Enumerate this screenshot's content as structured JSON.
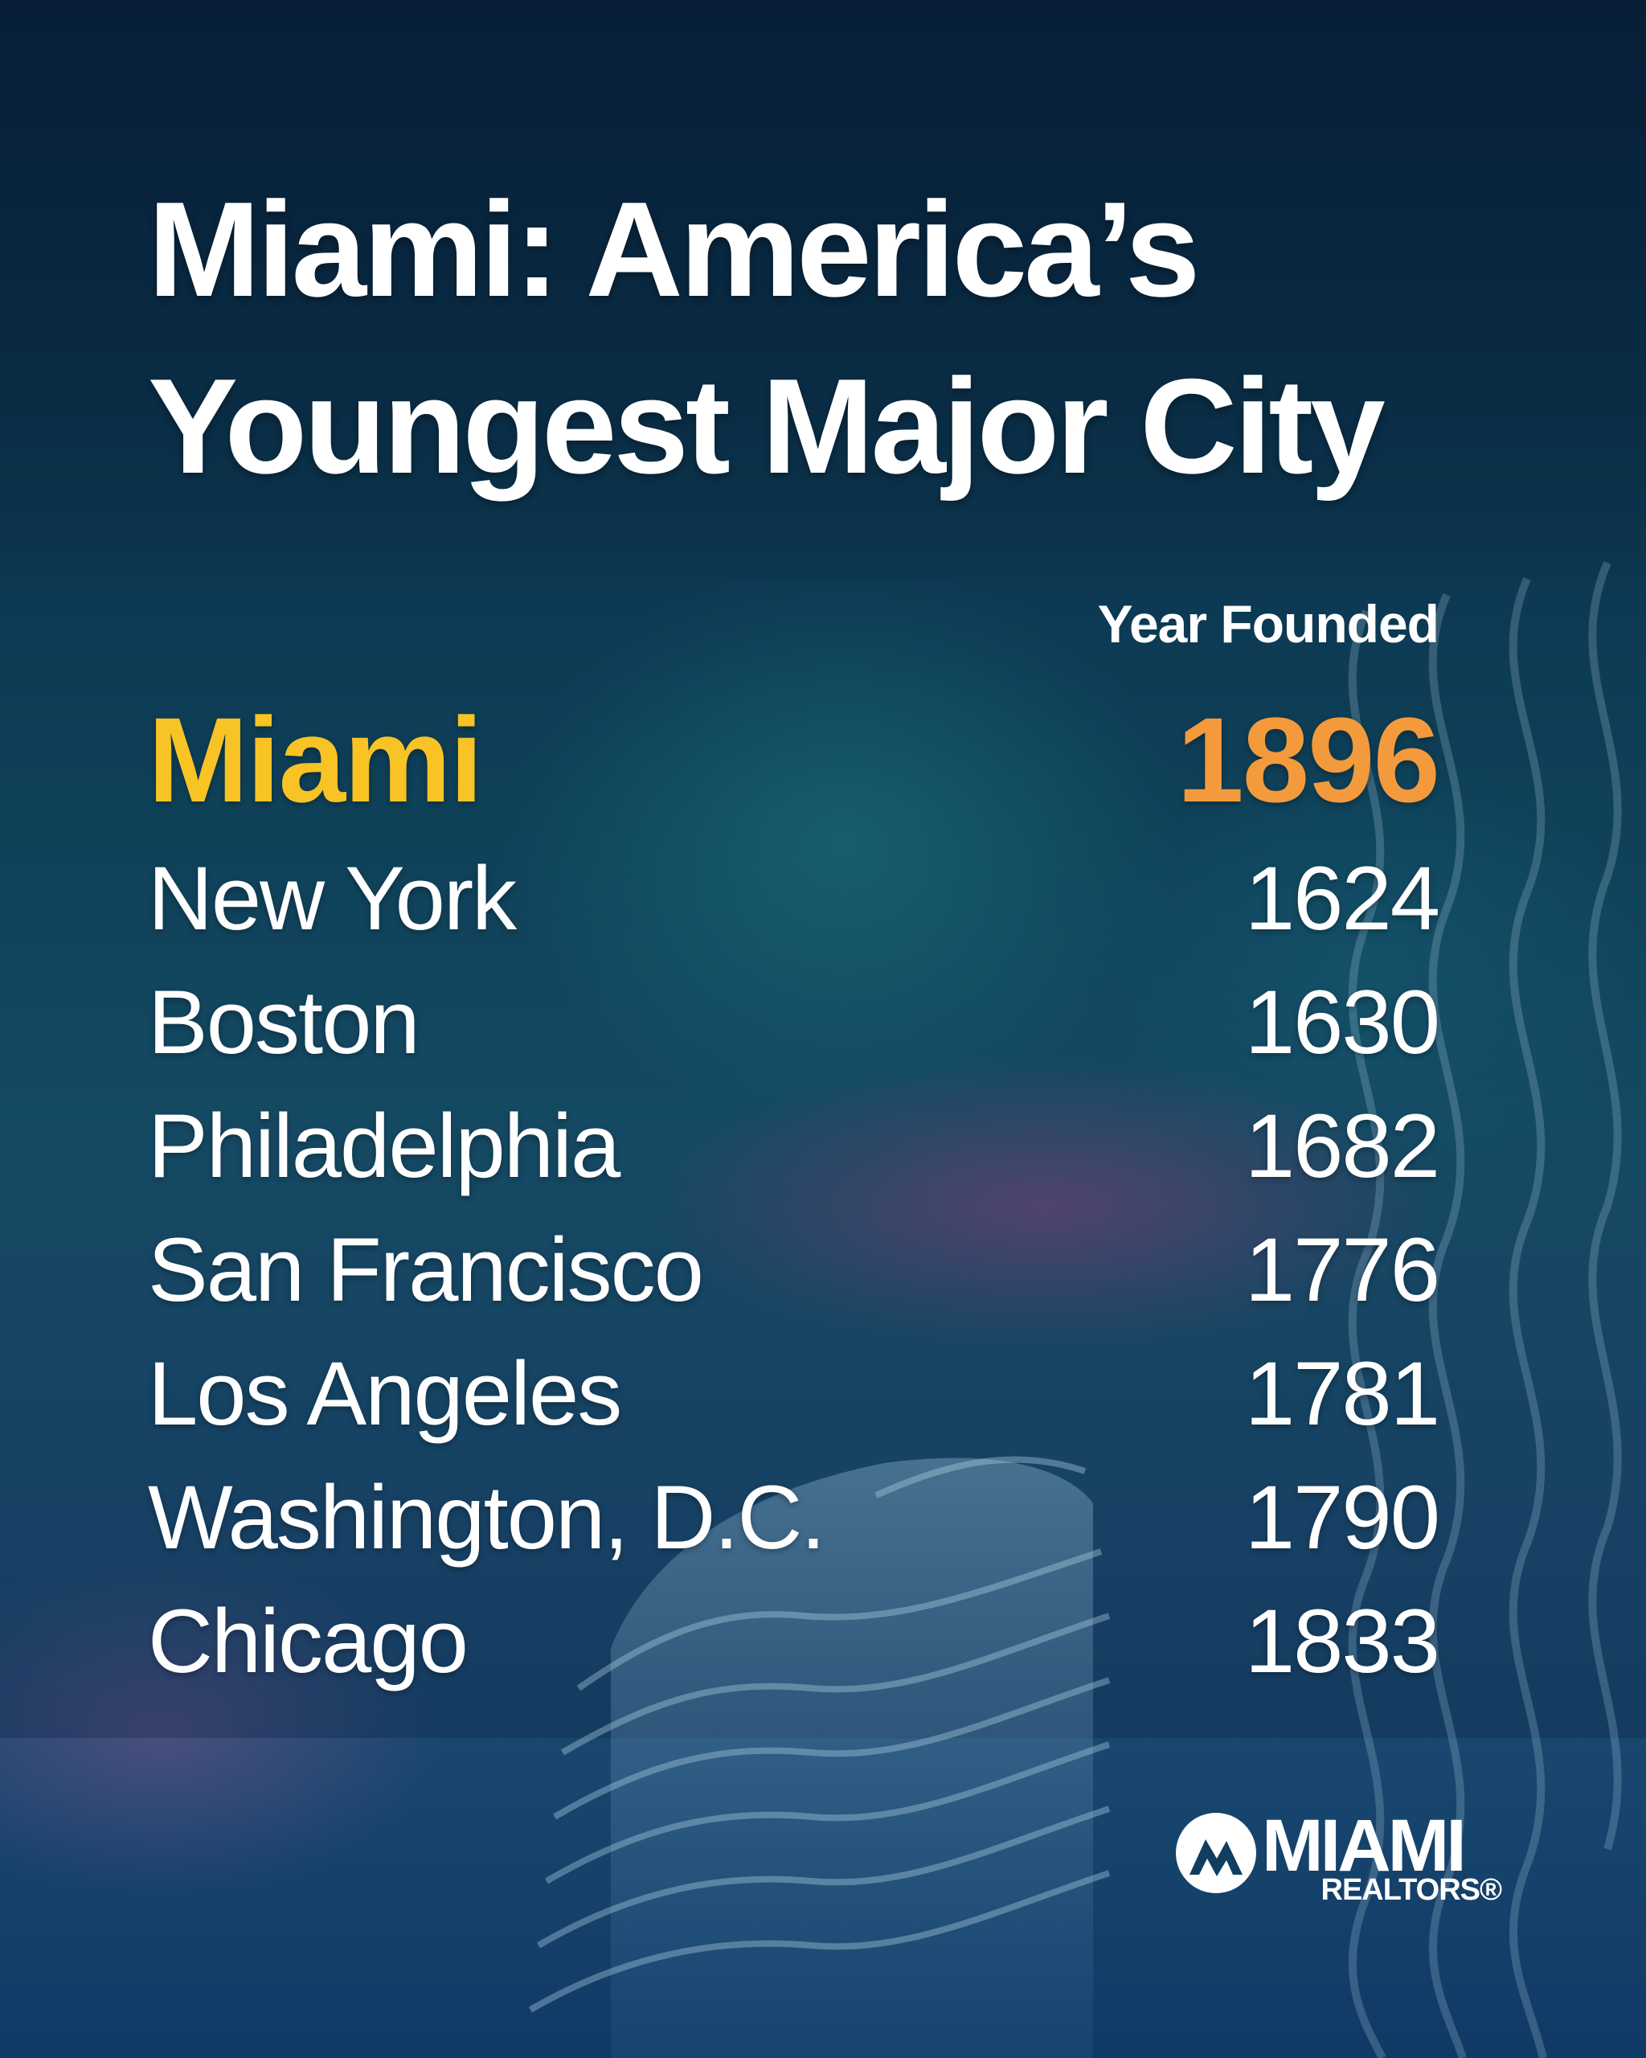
{
  "title": {
    "line1": "Miami: America’s",
    "line2": "Youngest Major City"
  },
  "column_header": "Year Founded",
  "cities": [
    {
      "name": "Miami",
      "year": "1896"
    },
    {
      "name": "New York",
      "year": "1624"
    },
    {
      "name": "Boston",
      "year": "1630"
    },
    {
      "name": "Philadelphia",
      "year": "1682"
    },
    {
      "name": "San Francisco",
      "year": "1776"
    },
    {
      "name": "Los Angeles",
      "year": "1781"
    },
    {
      "name": "Washington, D.C.",
      "year": "1790"
    },
    {
      "name": "Chicago",
      "year": "1833"
    }
  ],
  "logo": {
    "word": "MIAMI",
    "sub": "REALTORS®"
  },
  "colors": {
    "highlight_name": "#f7c325",
    "highlight_year": "#f39a3c",
    "text": "#ffffff",
    "background_dark": "#0b2e4a"
  },
  "icons": {
    "logo_mark": "miami-realtors-logo-mark"
  }
}
